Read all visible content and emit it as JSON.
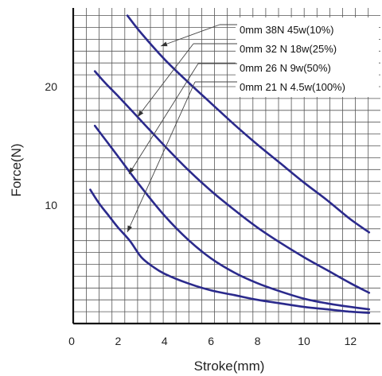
{
  "chart_data": {
    "type": "line",
    "xlabel": "Stroke(mm)",
    "ylabel": "Force(N)",
    "xlim": [
      0,
      13
    ],
    "ylim": [
      0,
      26
    ],
    "x_ticks": [
      "0",
      "2",
      "4",
      "6",
      "8",
      "10",
      "12"
    ],
    "y_ticks": [
      "10",
      "20"
    ],
    "grid": true,
    "legend_position": "top-right",
    "line_color": "#2b2a8c",
    "series": [
      {
        "name": "0mm 38N  45w(10%)",
        "x": [
          2.4,
          3,
          4,
          5,
          6,
          7,
          8,
          9,
          10,
          11,
          12,
          12.8
        ],
        "y": [
          26,
          24.5,
          22.3,
          20.4,
          18.6,
          16.8,
          15.1,
          13.5,
          11.9,
          10.4,
          8.8,
          7.7
        ]
      },
      {
        "name": "0mm 32 N  18w(25%)",
        "x": [
          1,
          1.5,
          2,
          3,
          4,
          5,
          6,
          7,
          8,
          9,
          10,
          11,
          12,
          12.8
        ],
        "y": [
          21.3,
          20.2,
          19.2,
          17.1,
          15,
          13,
          11.2,
          9.6,
          8.1,
          6.8,
          5.6,
          4.5,
          3.4,
          2.6
        ]
      },
      {
        "name": "0mm 26 N  9w(50%)",
        "x": [
          1,
          1.5,
          2,
          3,
          4,
          5,
          6,
          7,
          8,
          9,
          10,
          11,
          12,
          12.8
        ],
        "y": [
          16.7,
          15.4,
          14.1,
          11.5,
          9.1,
          7.1,
          5.5,
          4.3,
          3.4,
          2.7,
          2.1,
          1.7,
          1.4,
          1.2
        ]
      },
      {
        "name": "0mm 21 N  4.5w(100%)",
        "x": [
          0.8,
          1.2,
          1.6,
          2,
          2.5,
          3,
          3.5,
          4,
          5,
          6,
          7,
          8,
          9,
          10,
          11,
          12,
          12.8
        ],
        "y": [
          11.3,
          10.1,
          9.1,
          8.1,
          7,
          5.6,
          4.8,
          4.2,
          3.4,
          2.8,
          2.4,
          2,
          1.7,
          1.4,
          1.2,
          1,
          0.9
        ]
      }
    ]
  }
}
